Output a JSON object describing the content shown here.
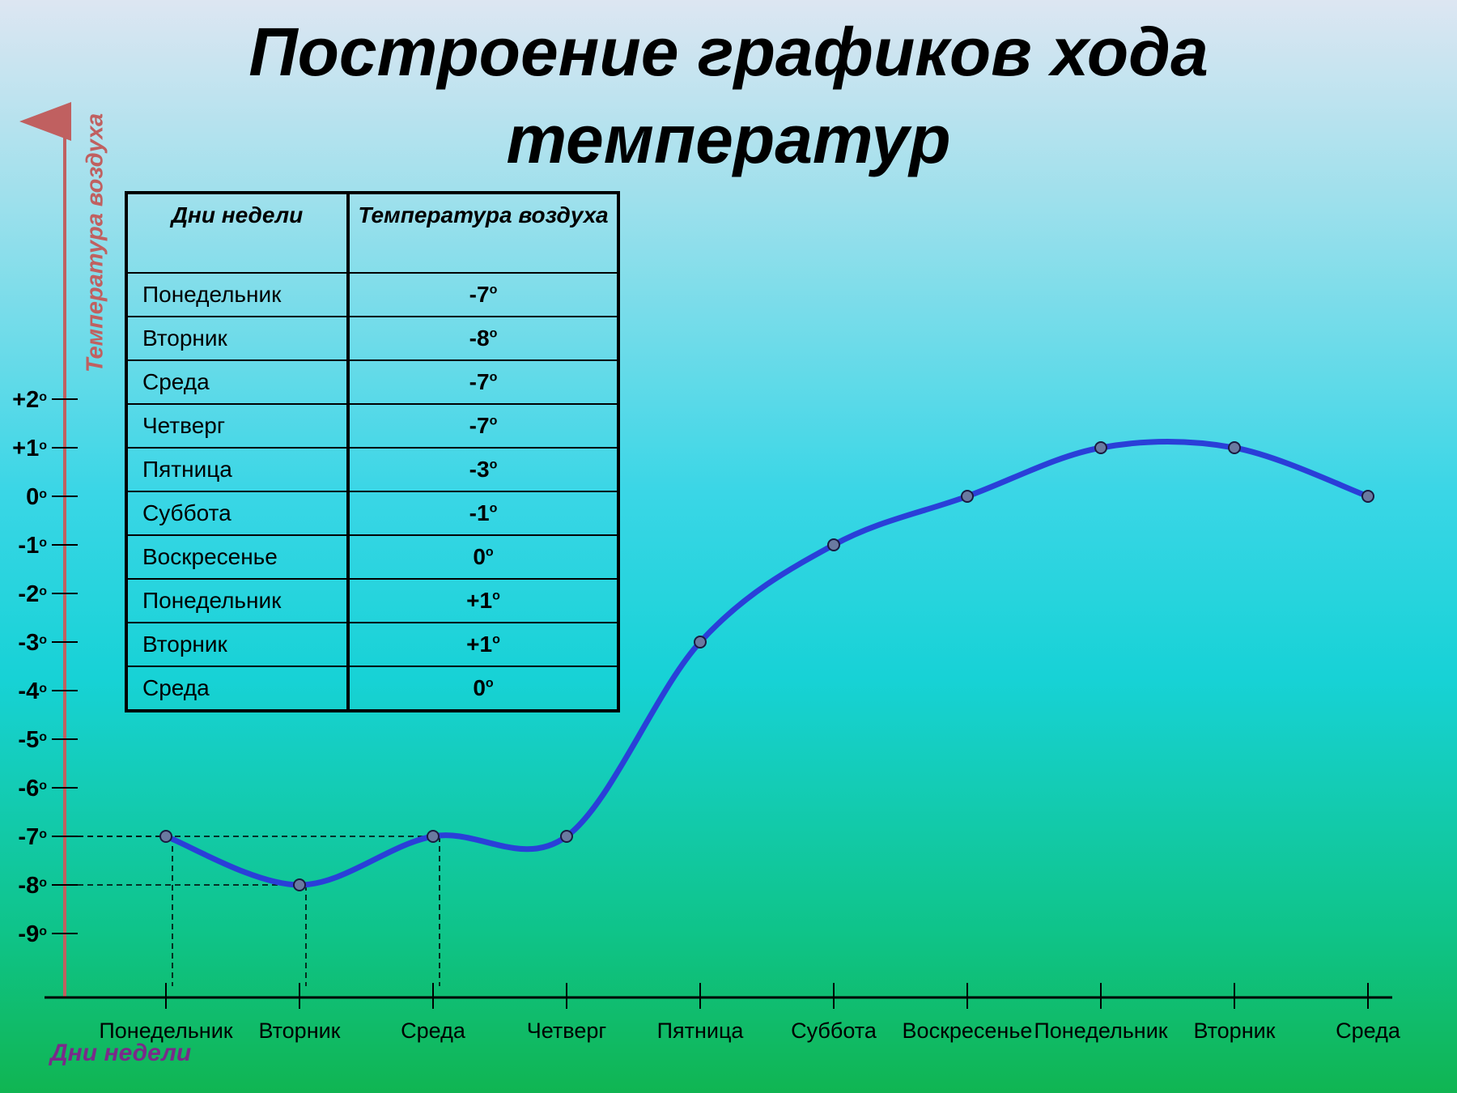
{
  "title": {
    "line1": "Построение графиков хода",
    "line2": "температур"
  },
  "table": {
    "header_day": "Дни недели",
    "header_temp": "Температура воздуха",
    "rows": [
      {
        "day": "Понедельник",
        "temp": "-7",
        "deg": "o"
      },
      {
        "day": "Вторник",
        "temp": "-8",
        "deg": "o"
      },
      {
        "day": "Среда",
        "temp": "-7",
        "deg": "o"
      },
      {
        "day": "Четверг",
        "temp": "-7",
        "deg": "o"
      },
      {
        "day": "Пятница",
        "temp": "-3",
        "deg": "o"
      },
      {
        "day": "Суббота",
        "temp": "-1",
        "deg": "o"
      },
      {
        "day": "Воскресенье",
        "temp": "0",
        "deg": "o"
      },
      {
        "day": "Понедельник",
        "temp": "+1",
        "deg": "o"
      },
      {
        "day": "Вторник",
        "temp": "+1",
        "deg": "o"
      },
      {
        "day": "Среда",
        "temp": "0",
        "deg": "o"
      }
    ]
  },
  "chart_data": {
    "type": "line",
    "categories": [
      "Понедельник",
      "Вторник",
      "Среда",
      "Четверг",
      "Пятница",
      "Суббота",
      "Воскресенье",
      "Понедельник",
      "Вторник",
      "Среда"
    ],
    "values": [
      -7,
      -8,
      -7,
      -7,
      -3,
      -1,
      0,
      1,
      1,
      0
    ],
    "ylabel": "Температура воздуха",
    "xlabel": "Дни недели",
    "ylim": [
      -9,
      2
    ],
    "yticks": [
      "+2",
      "+1",
      "0",
      "-1",
      "-2",
      "-3",
      "-4",
      "-5",
      "-6",
      "-7",
      "-8",
      "-9"
    ],
    "degree_mark": "o",
    "guide_points": [
      0,
      1,
      2
    ],
    "line_color": "#2a3fd8",
    "axis_color": "#c06060",
    "grid": false
  }
}
